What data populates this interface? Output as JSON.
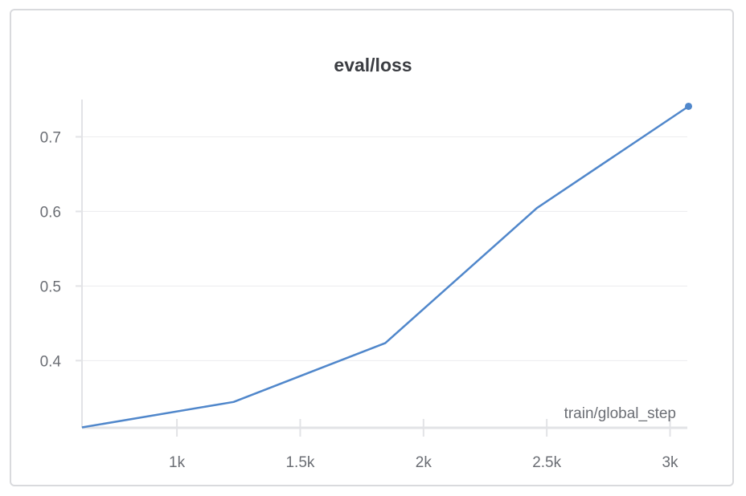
{
  "chart_data": {
    "type": "line",
    "title": "eval/loss",
    "xlabel": "train/global_step",
    "ylabel": "",
    "xlim": [
      615,
      3070
    ],
    "ylim": [
      0.31,
      0.75
    ],
    "x_ticks": [
      1000,
      1500,
      2000,
      2500,
      3000
    ],
    "x_tick_labels": [
      "1k",
      "1.5k",
      "2k",
      "2.5k",
      "3k"
    ],
    "y_ticks": [
      0.4,
      0.5,
      0.6,
      0.7
    ],
    "y_tick_labels": [
      "0.4",
      "0.5",
      "0.6",
      "0.7"
    ],
    "grid": true,
    "colors": {
      "line": "#5087cb",
      "grid": "#ececee",
      "axis": "#e2e3e6"
    },
    "series": [
      {
        "x": [
          615,
          1230,
          1845,
          2460,
          3075
        ],
        "y": [
          0.3105,
          0.3446,
          0.4236,
          0.6045,
          0.7409
        ]
      }
    ]
  }
}
